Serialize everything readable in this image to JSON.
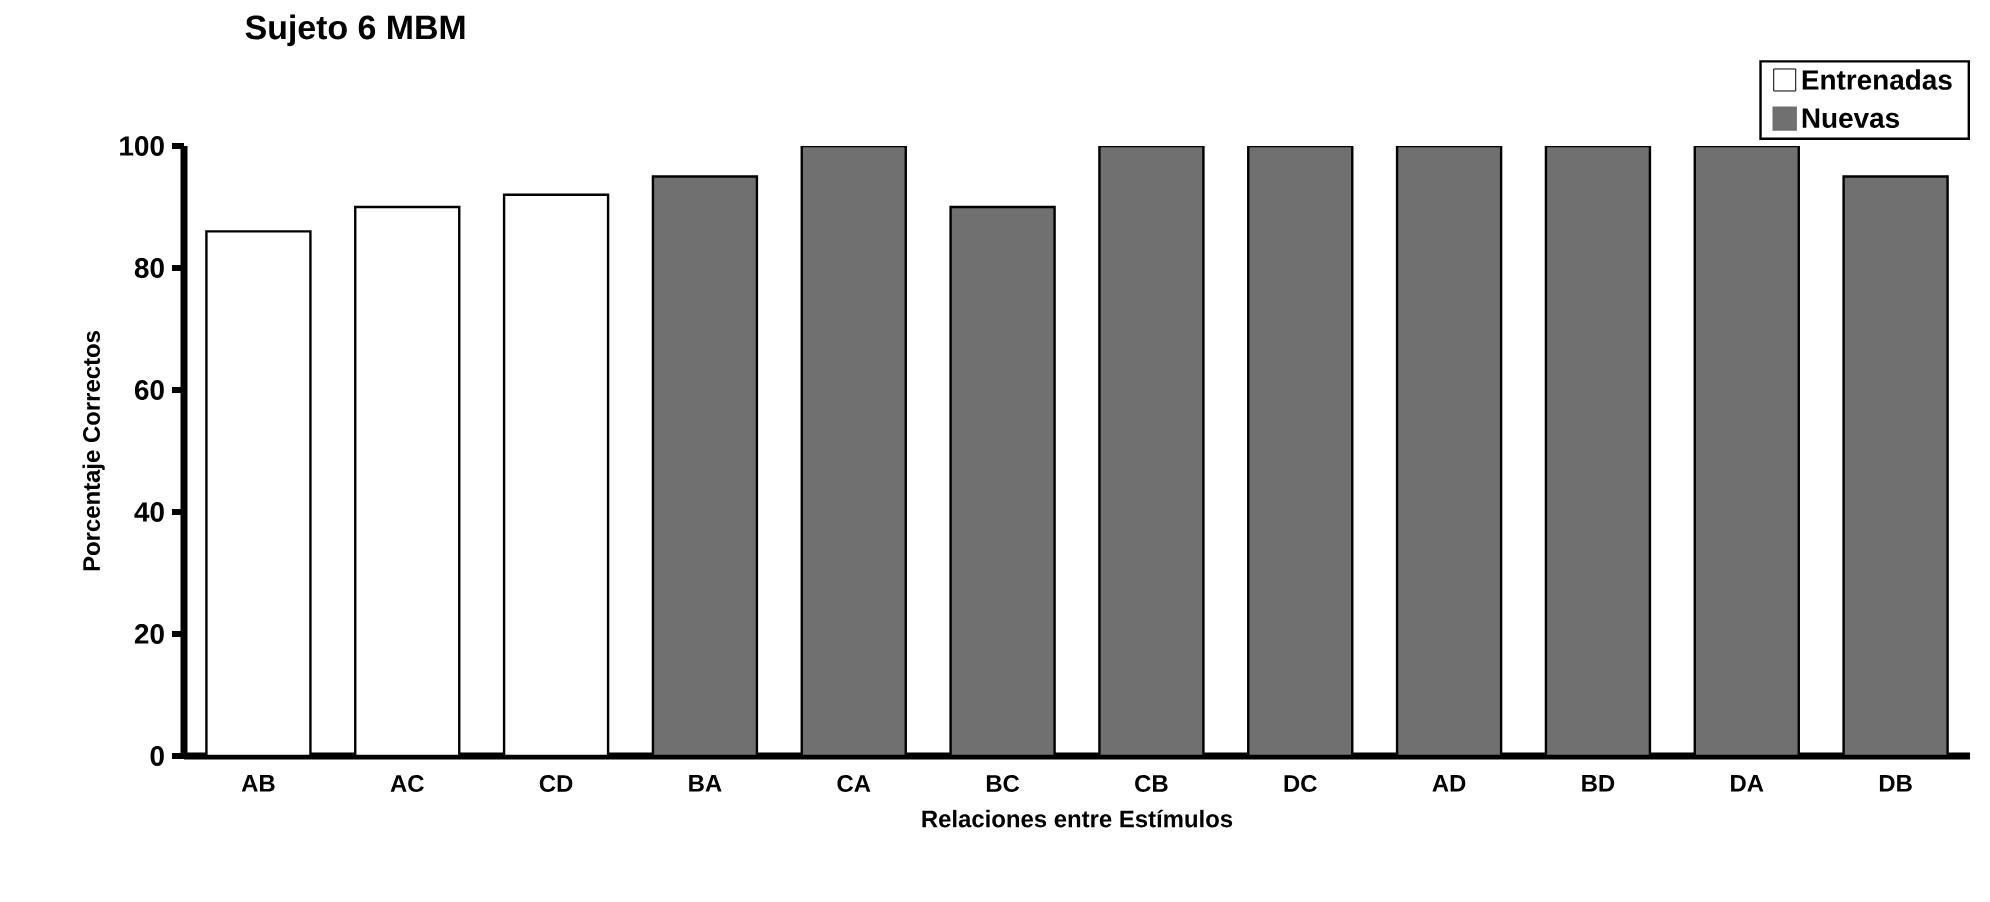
{
  "chart_data": {
    "type": "bar",
    "title": "Sujeto 6  MBM",
    "xlabel": "Relaciones entre Estímulos",
    "ylabel": "Porcentaje Correctos",
    "categories": [
      "AB",
      "AC",
      "CD",
      "BA",
      "CA",
      "BC",
      "CB",
      "DC",
      "AD",
      "BD",
      "DA",
      "DB"
    ],
    "series": [
      {
        "name": "Entrenadas",
        "color": "#ffffff",
        "values": [
          86,
          90,
          92,
          null,
          null,
          null,
          null,
          null,
          null,
          null,
          null,
          null
        ]
      },
      {
        "name": "Nuevas",
        "color": "#707070",
        "values": [
          null,
          null,
          null,
          95,
          100,
          90,
          100,
          100,
          100,
          100,
          100,
          95
        ]
      }
    ],
    "ylim": [
      0,
      100
    ],
    "yticks": [
      0,
      20,
      40,
      60,
      80,
      100
    ],
    "grid": false,
    "legend": "top right"
  }
}
